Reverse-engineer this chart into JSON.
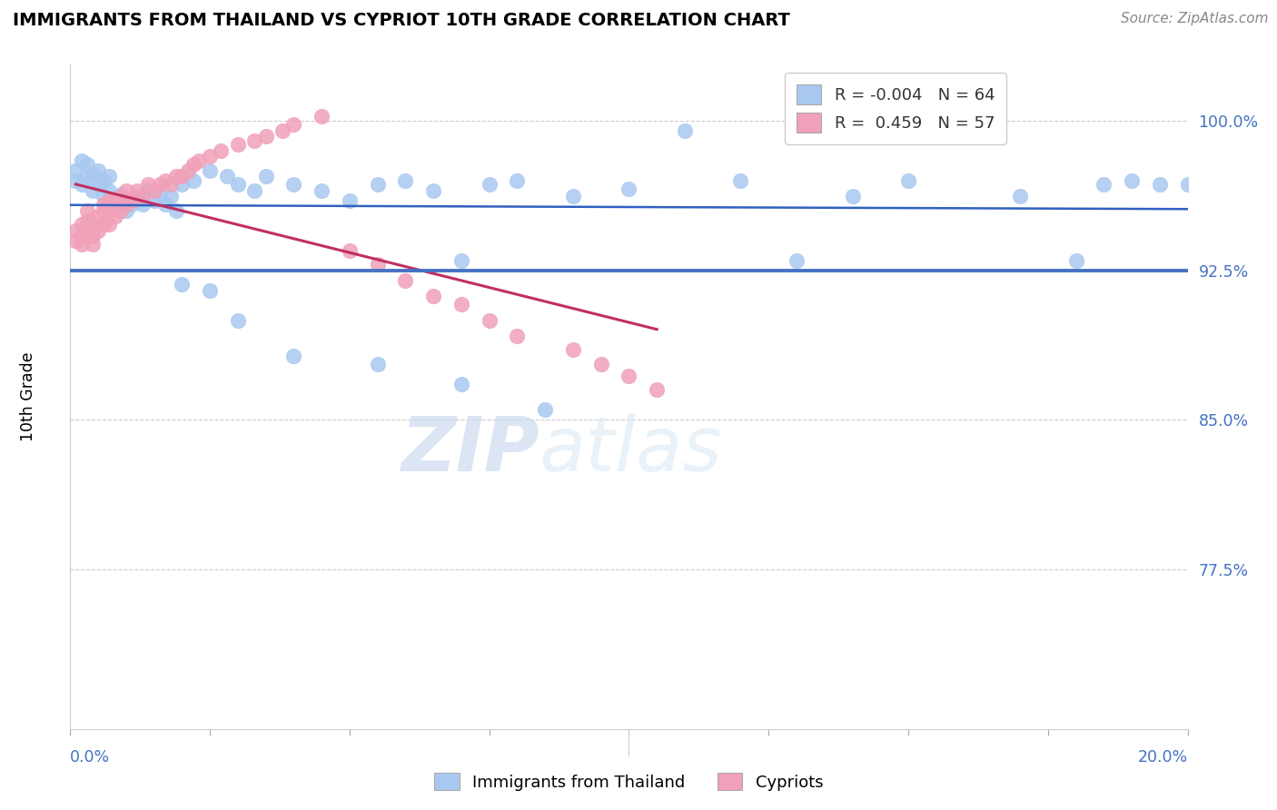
{
  "title": "IMMIGRANTS FROM THAILAND VS CYPRIOT 10TH GRADE CORRELATION CHART",
  "source": "Source: ZipAtlas.com",
  "ylabel": "10th Grade",
  "y_tick_labels": [
    "100.0%",
    "92.5%",
    "85.0%",
    "77.5%"
  ],
  "y_tick_values": [
    1.0,
    0.925,
    0.85,
    0.775
  ],
  "x_min": 0.0,
  "x_max": 0.2,
  "y_min": 0.695,
  "y_max": 1.028,
  "hline_y": 0.925,
  "hline_color": "#4472C4",
  "blue_color": "#a8c8f0",
  "pink_color": "#f0a0b8",
  "reg_blue_color": "#3060c0",
  "reg_pink_color": "#c03060",
  "watermark_zip": "ZIP",
  "watermark_atlas": "atlas",
  "legend_r1": "R = -0.004",
  "legend_n1": "N = 64",
  "legend_r2": "R =  0.459",
  "legend_n2": "N = 57",
  "blue_x": [
    0.001,
    0.001,
    0.002,
    0.002,
    0.003,
    0.003,
    0.004,
    0.004,
    0.005,
    0.005,
    0.006,
    0.006,
    0.007,
    0.007,
    0.008,
    0.009,
    0.01,
    0.01,
    0.011,
    0.012,
    0.013,
    0.014,
    0.015,
    0.016,
    0.017,
    0.018,
    0.019,
    0.02,
    0.022,
    0.025,
    0.028,
    0.03,
    0.033,
    0.035,
    0.04,
    0.045,
    0.05,
    0.055,
    0.06,
    0.065,
    0.07,
    0.075,
    0.08,
    0.09,
    0.1,
    0.11,
    0.12,
    0.13,
    0.14,
    0.15,
    0.16,
    0.17,
    0.18,
    0.185,
    0.19,
    0.195,
    0.2,
    0.02,
    0.025,
    0.03,
    0.04,
    0.055,
    0.07,
    0.085
  ],
  "blue_y": [
    0.97,
    0.975,
    0.968,
    0.98,
    0.972,
    0.978,
    0.965,
    0.973,
    0.968,
    0.975,
    0.962,
    0.97,
    0.965,
    0.972,
    0.958,
    0.963,
    0.955,
    0.96,
    0.958,
    0.962,
    0.958,
    0.965,
    0.96,
    0.963,
    0.958,
    0.962,
    0.955,
    0.968,
    0.97,
    0.975,
    0.972,
    0.968,
    0.965,
    0.972,
    0.968,
    0.965,
    0.96,
    0.968,
    0.97,
    0.965,
    0.93,
    0.968,
    0.97,
    0.962,
    0.966,
    0.995,
    0.97,
    0.93,
    0.962,
    0.97,
    0.998,
    0.962,
    0.93,
    0.968,
    0.97,
    0.968,
    0.968,
    0.918,
    0.915,
    0.9,
    0.882,
    0.878,
    0.868,
    0.855
  ],
  "pink_x": [
    0.001,
    0.001,
    0.002,
    0.002,
    0.002,
    0.003,
    0.003,
    0.003,
    0.004,
    0.004,
    0.004,
    0.005,
    0.005,
    0.006,
    0.006,
    0.006,
    0.007,
    0.007,
    0.007,
    0.008,
    0.008,
    0.009,
    0.009,
    0.01,
    0.01,
    0.011,
    0.012,
    0.013,
    0.014,
    0.015,
    0.016,
    0.017,
    0.018,
    0.019,
    0.02,
    0.021,
    0.022,
    0.023,
    0.025,
    0.027,
    0.03,
    0.033,
    0.035,
    0.038,
    0.04,
    0.045,
    0.05,
    0.055,
    0.06,
    0.065,
    0.07,
    0.075,
    0.08,
    0.09,
    0.095,
    0.1,
    0.105
  ],
  "pink_y": [
    0.94,
    0.945,
    0.942,
    0.938,
    0.948,
    0.945,
    0.95,
    0.955,
    0.942,
    0.938,
    0.948,
    0.945,
    0.952,
    0.948,
    0.955,
    0.958,
    0.948,
    0.955,
    0.96,
    0.952,
    0.96,
    0.955,
    0.962,
    0.958,
    0.965,
    0.96,
    0.965,
    0.962,
    0.968,
    0.965,
    0.968,
    0.97,
    0.968,
    0.972,
    0.972,
    0.975,
    0.978,
    0.98,
    0.982,
    0.985,
    0.988,
    0.99,
    0.992,
    0.995,
    0.998,
    1.002,
    0.935,
    0.928,
    0.92,
    0.912,
    0.908,
    0.9,
    0.892,
    0.885,
    0.878,
    0.872,
    0.865
  ]
}
